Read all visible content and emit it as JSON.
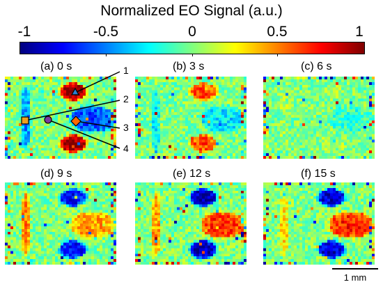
{
  "colorbar": {
    "title": "Normalized EO Signal (a.u.)",
    "ticks": [
      "-1",
      "-0.5",
      "0",
      "0.5",
      "1"
    ],
    "tick_values": [
      -1,
      -0.5,
      0,
      0.5,
      1
    ],
    "colormap": "jet"
  },
  "panels": [
    {
      "label": "(a) 0 s"
    },
    {
      "label": "(b) 3 s"
    },
    {
      "label": "(c) 6 s"
    },
    {
      "label": "(d) 9 s"
    },
    {
      "label": "(e) 12 s"
    },
    {
      "label": "(f) 15 s"
    }
  ],
  "callouts": [
    "1",
    "2",
    "3",
    "4"
  ],
  "marker_colors": {
    "triangle": "#2a7fd4",
    "square": "#f0a020",
    "diamond": "#ff6a00",
    "circle": "#7a3aa0"
  },
  "scale_bar": {
    "label": "1 mm"
  }
}
